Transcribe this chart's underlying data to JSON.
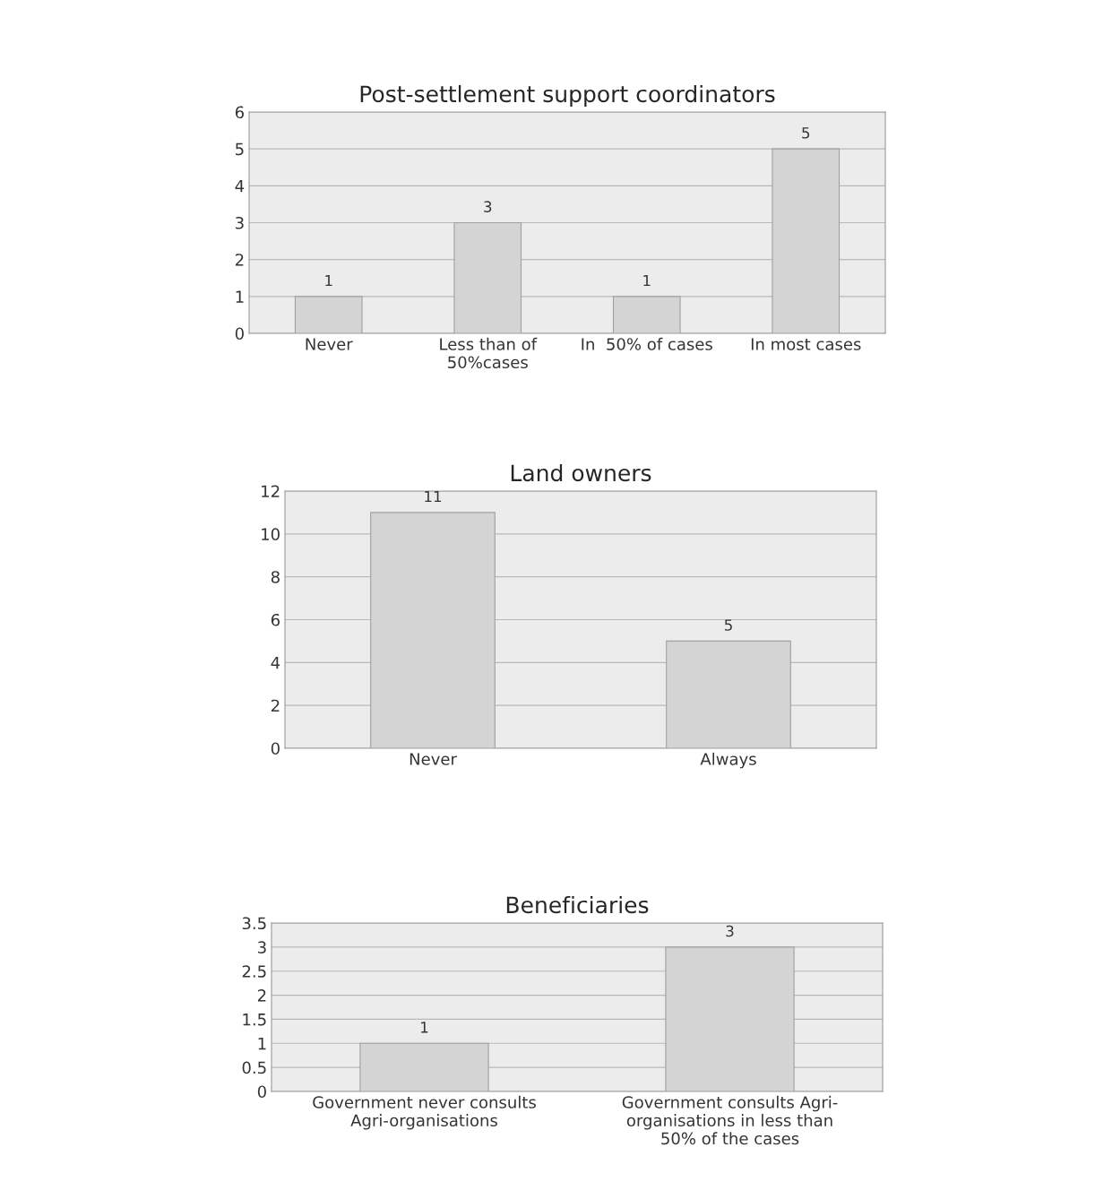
{
  "chart_data": [
    {
      "type": "bar",
      "title": "Post-settlement support coordinators",
      "categories": [
        "Never",
        "Less than of\n50%cases",
        "In  50% of cases",
        "In most cases"
      ],
      "values": [
        1,
        3,
        1,
        5
      ],
      "color": "#d4d4d4",
      "ylim": [
        0,
        6
      ],
      "yticks": [
        0,
        1,
        2,
        3,
        4,
        5,
        6
      ],
      "grid": "y",
      "data_labels": true
    },
    {
      "type": "bar",
      "title": "Land owners",
      "categories": [
        "Never",
        "Always"
      ],
      "values": [
        11,
        5
      ],
      "color": "#d4d4d4",
      "ylim": [
        0,
        12
      ],
      "yticks": [
        0,
        2,
        4,
        6,
        8,
        10,
        12
      ],
      "grid": "y",
      "data_labels": true
    },
    {
      "type": "bar",
      "title": "Beneficiaries",
      "categories": [
        "Government never consults\nAgri-organisations",
        "Government consults Agri-\norganisations in less than\n50% of the cases"
      ],
      "values": [
        1,
        3
      ],
      "color": "#d4d4d4",
      "ylim": [
        0,
        3.5
      ],
      "yticks": [
        0,
        0.5,
        1,
        1.5,
        2,
        2.5,
        3,
        3.5
      ],
      "grid": "y",
      "data_labels": true
    }
  ]
}
